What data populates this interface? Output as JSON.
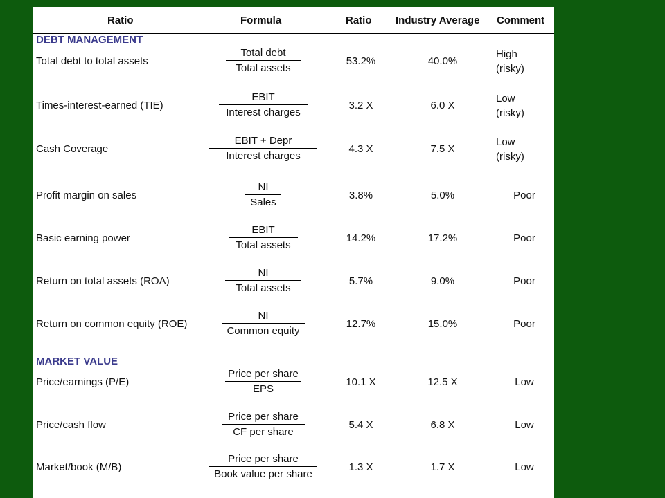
{
  "headers": {
    "ratio": "Ratio",
    "formula": "Formula",
    "value": "Ratio",
    "industry": "Industry Average",
    "comment": "Comment"
  },
  "sections": {
    "debt": "DEBT MANAGEMENT",
    "market": "MARKET VALUE"
  },
  "rows": [
    {
      "name": "Total debt to total assets",
      "num": "Total debt",
      "den": "Total assets",
      "value": "53.2%",
      "industry": "40.0%",
      "comment1": "High",
      "comment2": "(risky)"
    },
    {
      "name": "Times-interest-earned (TIE)",
      "num": "EBIT",
      "den": "Interest charges",
      "value": "3.2 X",
      "industry": "6.0 X",
      "comment1": "Low",
      "comment2": "(risky)"
    },
    {
      "name": "Cash Coverage",
      "num": "EBIT + Depr",
      "den": "Interest charges",
      "value": "4.3 X",
      "industry": "7.5 X",
      "comment1": "Low",
      "comment2": "(risky)"
    },
    {
      "name": "Profit margin on sales",
      "num": "NI",
      "den": "Sales",
      "value": "3.8%",
      "industry": "5.0%",
      "comment1": "Poor"
    },
    {
      "name": "Basic earning power",
      "num": "EBIT",
      "den": "Total assets",
      "value": "14.2%",
      "industry": "17.2%",
      "comment1": "Poor"
    },
    {
      "name": "Return on total assets (ROA)",
      "num": "NI",
      "den": "Total assets",
      "value": "5.7%",
      "industry": "9.0%",
      "comment1": "Poor"
    },
    {
      "name": "Return on common equity (ROE)",
      "num": "NI",
      "den": "Common equity",
      "value": "12.7%",
      "industry": "15.0%",
      "comment1": "Poor"
    },
    {
      "name": "Price/earnings (P/E)",
      "num": "Price per share",
      "den": "EPS",
      "value": "10.1 X",
      "industry": "12.5 X",
      "comment1": "Low"
    },
    {
      "name": "Price/cash flow",
      "num": "Price per share",
      "den": "CF per share",
      "value": "5.4 X",
      "industry": "6.8 X",
      "comment1": "Low"
    },
    {
      "name": "Market/book (M/B)",
      "num": "Price per share",
      "den": "Book value per share",
      "value": "1.3 X",
      "industry": "1.7 X",
      "comment1": "Low"
    }
  ]
}
